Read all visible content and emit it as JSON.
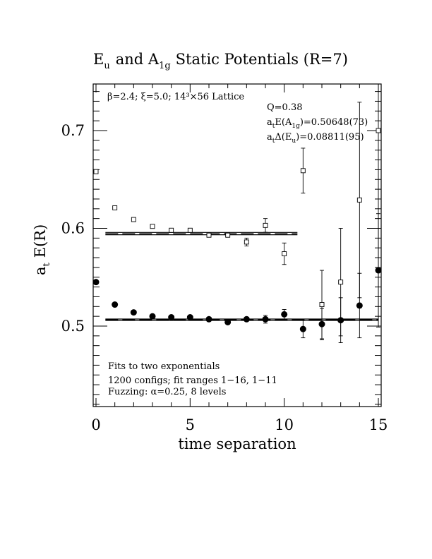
{
  "chart_data": {
    "type": "scatter",
    "title": {
      "main": "Static Potentials (R=7)",
      "part1": "E",
      "part1_sub": "u",
      "part2": "and A",
      "part2_sub": "1g"
    },
    "xlabel": "time separation",
    "ylabel": {
      "base": "a",
      "sub": "t",
      "rest": "E(R)"
    },
    "xlim": [
      0,
      15
    ],
    "ylim": [
      0.42,
      0.75
    ],
    "xticks": [
      0,
      5,
      10,
      15
    ],
    "xtick_labels": [
      "0",
      "5",
      "10",
      "15"
    ],
    "yticks": [
      0.5,
      0.6,
      0.7
    ],
    "ytick_labels": [
      "0.5",
      "0.6",
      "0.7"
    ],
    "grid": false,
    "annotations": {
      "lattice": "β=2.4; ξ=5.0; 14³×56 Lattice",
      "q": "Q=0.38",
      "fit_a1g": {
        "base": "a",
        "sub": "t",
        "mid": "E(A",
        "sub2": "1g",
        "rest": ")=0.50648(73)"
      },
      "fit_eu": {
        "base": "a",
        "sub": "t",
        "mid": "Δ(E",
        "sub2": "u",
        "rest": ")=0.08811(95)"
      },
      "note1": "Fits to two exponentials",
      "note2": "1200 configs; fit ranges 1−16, 1−11",
      "note3": "Fuzzing: α=0.25, 8 levels"
    },
    "series": [
      {
        "name": "A1g",
        "marker": "filled-circle",
        "x": [
          0,
          1,
          2,
          3,
          4,
          5,
          6,
          7,
          8,
          9,
          10,
          11,
          12,
          13,
          14,
          15
        ],
        "y": [
          0.545,
          0.522,
          0.514,
          0.51,
          0.509,
          0.509,
          0.507,
          0.504,
          0.507,
          0.507,
          0.512,
          0.497,
          0.502,
          0.506,
          0.521,
          0.557
        ],
        "err": [
          0.001,
          0.001,
          0.001,
          0.001,
          0.001,
          0.001,
          0.001,
          0.001,
          0.002,
          0.004,
          0.005,
          0.009,
          0.016,
          0.023,
          0.033,
          0.058
        ]
      },
      {
        "name": "Eu",
        "marker": "open-square",
        "x": [
          0,
          1,
          2,
          3,
          4,
          5,
          6,
          7,
          8,
          9,
          10,
          11,
          12,
          13,
          14,
          15
        ],
        "y": [
          0.658,
          0.621,
          0.609,
          0.602,
          0.598,
          0.598,
          0.593,
          0.593,
          0.586,
          0.603,
          0.574,
          0.659,
          0.522,
          0.545,
          0.629,
          0.7
        ],
        "err": [
          0.001,
          0.001,
          0.001,
          0.002,
          0.002,
          0.002,
          0.002,
          0.002,
          0.004,
          0.007,
          0.011,
          0.023,
          0.035,
          0.055,
          0.1,
          0.2
        ]
      }
    ],
    "fit_bands": [
      {
        "name": "A1g",
        "x": [
          0.5,
          15
        ],
        "center": 0.50648,
        "err": 0.00073
      },
      {
        "name": "Eu",
        "x": [
          0.5,
          10.7
        ],
        "center": 0.59459,
        "err": 0.0012
      }
    ]
  }
}
